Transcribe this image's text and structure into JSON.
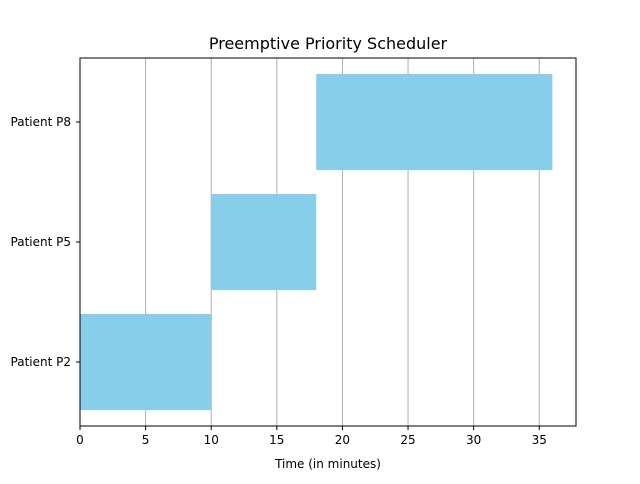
{
  "chart_data": {
    "type": "bar",
    "orientation": "horizontal",
    "title": "Preemptive Priority Scheduler",
    "xlabel": "Time (in minutes)",
    "ylabel": "",
    "xlim": [
      0,
      37.8
    ],
    "xticks": [
      0,
      5,
      10,
      15,
      20,
      25,
      30,
      35
    ],
    "categories": [
      "Patient P2",
      "Patient P5",
      "Patient P8"
    ],
    "bars": [
      {
        "category": "Patient P2",
        "start": 0,
        "end": 10
      },
      {
        "category": "Patient P5",
        "start": 10,
        "end": 18
      },
      {
        "category": "Patient P8",
        "start": 18,
        "end": 36
      }
    ],
    "grid": "x-axis vertical lines",
    "legend": "none",
    "colors": {
      "bar": "#87ceeb",
      "grid": "#b0b0b0",
      "axis": "#000000",
      "text": "#000000"
    }
  }
}
